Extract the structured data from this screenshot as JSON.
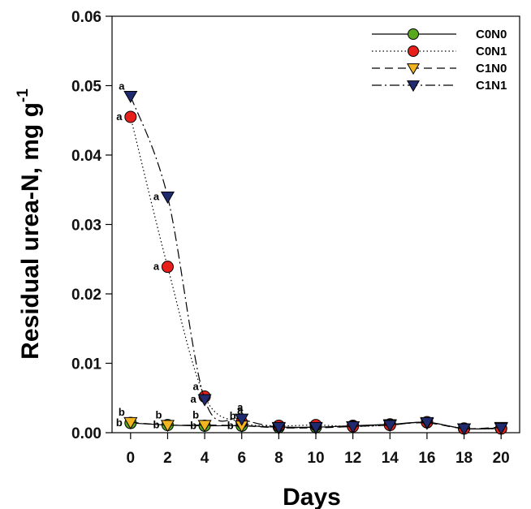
{
  "chart_data": {
    "type": "line",
    "xlabel": "Days",
    "ylabel": "Residual urea-N, mg g",
    "ylabel_superscript": "-1",
    "xlim": [
      -1,
      21
    ],
    "ylim": [
      0,
      0.06
    ],
    "xticks": [
      "0",
      "2",
      "4",
      "6",
      "8",
      "10",
      "12",
      "14",
      "16",
      "18",
      "20"
    ],
    "yticks": [
      "0.00",
      "0.01",
      "0.02",
      "0.03",
      "0.04",
      "0.05",
      "0.06"
    ],
    "grid": false,
    "legend_position": "top-right",
    "x": [
      0,
      2,
      4,
      6,
      8,
      10,
      12,
      14,
      16,
      18,
      20
    ],
    "series": [
      {
        "name": "C0N0",
        "line": "solid",
        "marker": "circle",
        "color": "#5aa81e",
        "values": [
          0.0014,
          0.0011,
          0.001,
          0.001,
          0.0008,
          0.0008,
          0.001,
          0.0012,
          0.0015,
          0.0006,
          0.0006
        ]
      },
      {
        "name": "C0N1",
        "line": "dotted",
        "marker": "circle",
        "color": "#e8201c",
        "values": [
          0.0455,
          0.0239,
          0.0052,
          0.0015,
          0.001,
          0.0011,
          0.0009,
          0.0011,
          0.0015,
          0.0006,
          0.0006
        ]
      },
      {
        "name": "C1N0",
        "line": "dashed",
        "marker": "triangle-down",
        "color": "#f2b51f",
        "values": [
          0.0015,
          0.0011,
          0.0011,
          0.001,
          0.0007,
          0.0007,
          0.0009,
          0.0012,
          0.0014,
          0.0006,
          0.0008
        ]
      },
      {
        "name": "C1N1",
        "line": "dashdot",
        "marker": "triangle-down",
        "color": "#1f2b6e",
        "values": [
          0.0485,
          0.034,
          0.0048,
          0.002,
          0.0008,
          0.0008,
          0.0009,
          0.0011,
          0.0015,
          0.0006,
          0.0007
        ]
      }
    ],
    "annotations": [
      {
        "text": "a",
        "x": 0,
        "y": 0.0485,
        "anchor": "left-above"
      },
      {
        "text": "a",
        "x": 0,
        "y": 0.0455,
        "anchor": "left"
      },
      {
        "text": "a",
        "x": 2,
        "y": 0.034,
        "anchor": "left"
      },
      {
        "text": "a",
        "x": 2,
        "y": 0.0239,
        "anchor": "left"
      },
      {
        "text": "a",
        "x": 4,
        "y": 0.0052,
        "anchor": "left-above"
      },
      {
        "text": "a",
        "x": 4,
        "y": 0.0048,
        "anchor": "left"
      },
      {
        "text": "a",
        "x": 6,
        "y": 0.002,
        "anchor": "above"
      },
      {
        "text": "a",
        "x": 6,
        "y": 0.0015,
        "anchor": "above"
      },
      {
        "text": "b",
        "x": 0,
        "y": 0.0015,
        "anchor": "left-above"
      },
      {
        "text": "b",
        "x": 0,
        "y": 0.0014,
        "anchor": "left"
      },
      {
        "text": "b",
        "x": 2,
        "y": 0.0011,
        "anchor": "left-above"
      },
      {
        "text": "b",
        "x": 2,
        "y": 0.0011,
        "anchor": "left"
      },
      {
        "text": "b",
        "x": 4,
        "y": 0.0011,
        "anchor": "left-above"
      },
      {
        "text": "b",
        "x": 4,
        "y": 0.001,
        "anchor": "left"
      },
      {
        "text": "b",
        "x": 6,
        "y": 0.001,
        "anchor": "left-above"
      },
      {
        "text": "b",
        "x": 6,
        "y": 0.001,
        "anchor": "left"
      }
    ]
  }
}
